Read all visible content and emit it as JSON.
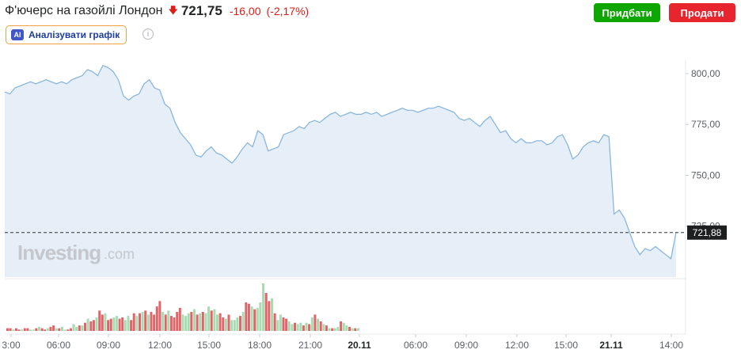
{
  "header": {
    "title": "Ф'ючерс на газойлі Лондон",
    "direction_icon": "arrow-down-icon",
    "price": "721,75",
    "change": "-16,00",
    "change_pct": "(-2,17%)"
  },
  "actions": {
    "buy_label": "Придбати",
    "sell_label": "Продати"
  },
  "ai": {
    "badge": "AI",
    "label": "Аналізувати графік"
  },
  "watermark": {
    "brand": "Investing",
    "suffix": ".com"
  },
  "colors": {
    "line": "#82b2dd",
    "area": "#e6eef7",
    "up": "#a9dbb1",
    "down": "#e1646a",
    "negative": "#d91e18",
    "buy": "#0ea600",
    "sell": "#e6252f"
  },
  "chart_data": {
    "type": "area",
    "ylim": [
      700,
      807
    ],
    "yticks": [
      {
        "label": "800,00",
        "value": 800
      },
      {
        "label": "775,00",
        "value": 775
      },
      {
        "label": "750,00",
        "value": 750
      },
      {
        "label": "725,00",
        "value": 725
      }
    ],
    "current_label": "721,88",
    "current_value": 721.88,
    "xticks": [
      "3:00",
      "06:00",
      "09:00",
      "12:00",
      "15:00",
      "18:00",
      "21:00",
      "20.11",
      "06:00",
      "09:00",
      "12:00",
      "15:00",
      "21.11",
      "14:00"
    ],
    "price_series": [
      791,
      790,
      793,
      794,
      795,
      796,
      795,
      796,
      797,
      796,
      795,
      796,
      795,
      797,
      798,
      799,
      802,
      801,
      799,
      804,
      803,
      801,
      797,
      789,
      787,
      789,
      790,
      795,
      797,
      793,
      792,
      785,
      783,
      776,
      771,
      768,
      765,
      760,
      759,
      762,
      764,
      761,
      760,
      758,
      756,
      759,
      763,
      766,
      764,
      772,
      770,
      762,
      763,
      764,
      770,
      771,
      772,
      774,
      773,
      776,
      777,
      776,
      778,
      780,
      781,
      779,
      780,
      781,
      780,
      780,
      781,
      780,
      781,
      779,
      780,
      781,
      782,
      783,
      782,
      782,
      781,
      782,
      783,
      783,
      784,
      783,
      782,
      781,
      778,
      777,
      778,
      776,
      774,
      777,
      779,
      775,
      771,
      772,
      768,
      766,
      768,
      766,
      766,
      767,
      767,
      765,
      766,
      769,
      770,
      765,
      758,
      760,
      764,
      766,
      767,
      766,
      770,
      769,
      731,
      733,
      729,
      722,
      715,
      711,
      714,
      713,
      715,
      713,
      711,
      709,
      722
    ]
  },
  "volume_data": {
    "values": [
      2,
      2,
      1,
      2,
      1,
      1,
      2,
      2,
      1,
      1,
      2,
      3,
      2,
      1,
      2,
      3,
      4,
      2,
      2,
      3,
      1,
      1,
      2,
      5,
      3,
      4,
      4,
      6,
      9,
      7,
      8,
      10,
      15,
      12,
      13,
      8,
      9,
      10,
      11,
      9,
      10,
      8,
      11,
      8,
      13,
      11,
      13,
      14,
      15,
      12,
      14,
      12,
      18,
      22,
      14,
      12,
      15,
      11,
      10,
      14,
      17,
      12,
      11,
      13,
      14,
      16,
      12,
      13,
      14,
      13,
      18,
      15,
      16,
      12,
      13,
      10,
      9,
      12,
      8,
      8,
      10,
      11,
      14,
      21,
      20,
      18,
      16,
      17,
      21,
      35,
      28,
      22,
      24,
      13,
      8,
      12,
      10,
      9,
      7,
      5,
      6,
      5,
      6,
      4,
      6,
      5,
      10,
      12,
      9,
      7,
      5,
      4,
      2,
      2,
      2,
      3,
      7,
      6,
      4,
      3,
      2,
      2,
      2
    ],
    "directions": [
      "d",
      "d",
      "u",
      "d",
      "d",
      "u",
      "d",
      "d",
      "u",
      "u",
      "d",
      "u",
      "d",
      "d",
      "u",
      "d",
      "d",
      "u",
      "d",
      "u",
      "u",
      "d",
      "d",
      "u",
      "u",
      "d",
      "u",
      "d",
      "u",
      "d",
      "d",
      "u",
      "d",
      "d",
      "u",
      "d",
      "d",
      "u",
      "u",
      "d",
      "d",
      "u",
      "u",
      "d",
      "d",
      "u",
      "d",
      "u",
      "d",
      "u",
      "d",
      "d",
      "d",
      "d",
      "u",
      "d",
      "u",
      "d",
      "d",
      "d",
      "d",
      "u",
      "u",
      "u",
      "d",
      "u",
      "d",
      "u",
      "d",
      "u",
      "u",
      "d",
      "u",
      "u",
      "d",
      "d",
      "u",
      "d",
      "u",
      "u",
      "u",
      "d",
      "u",
      "d",
      "d",
      "u",
      "d",
      "u",
      "u",
      "u",
      "d",
      "d",
      "u",
      "d",
      "u",
      "u",
      "d",
      "d",
      "u",
      "u",
      "d",
      "u",
      "u",
      "d",
      "u",
      "d",
      "u",
      "d",
      "u",
      "d",
      "u",
      "d",
      "u",
      "d",
      "u",
      "u",
      "d",
      "u",
      "u",
      "d",
      "u",
      "d",
      "u"
    ]
  }
}
